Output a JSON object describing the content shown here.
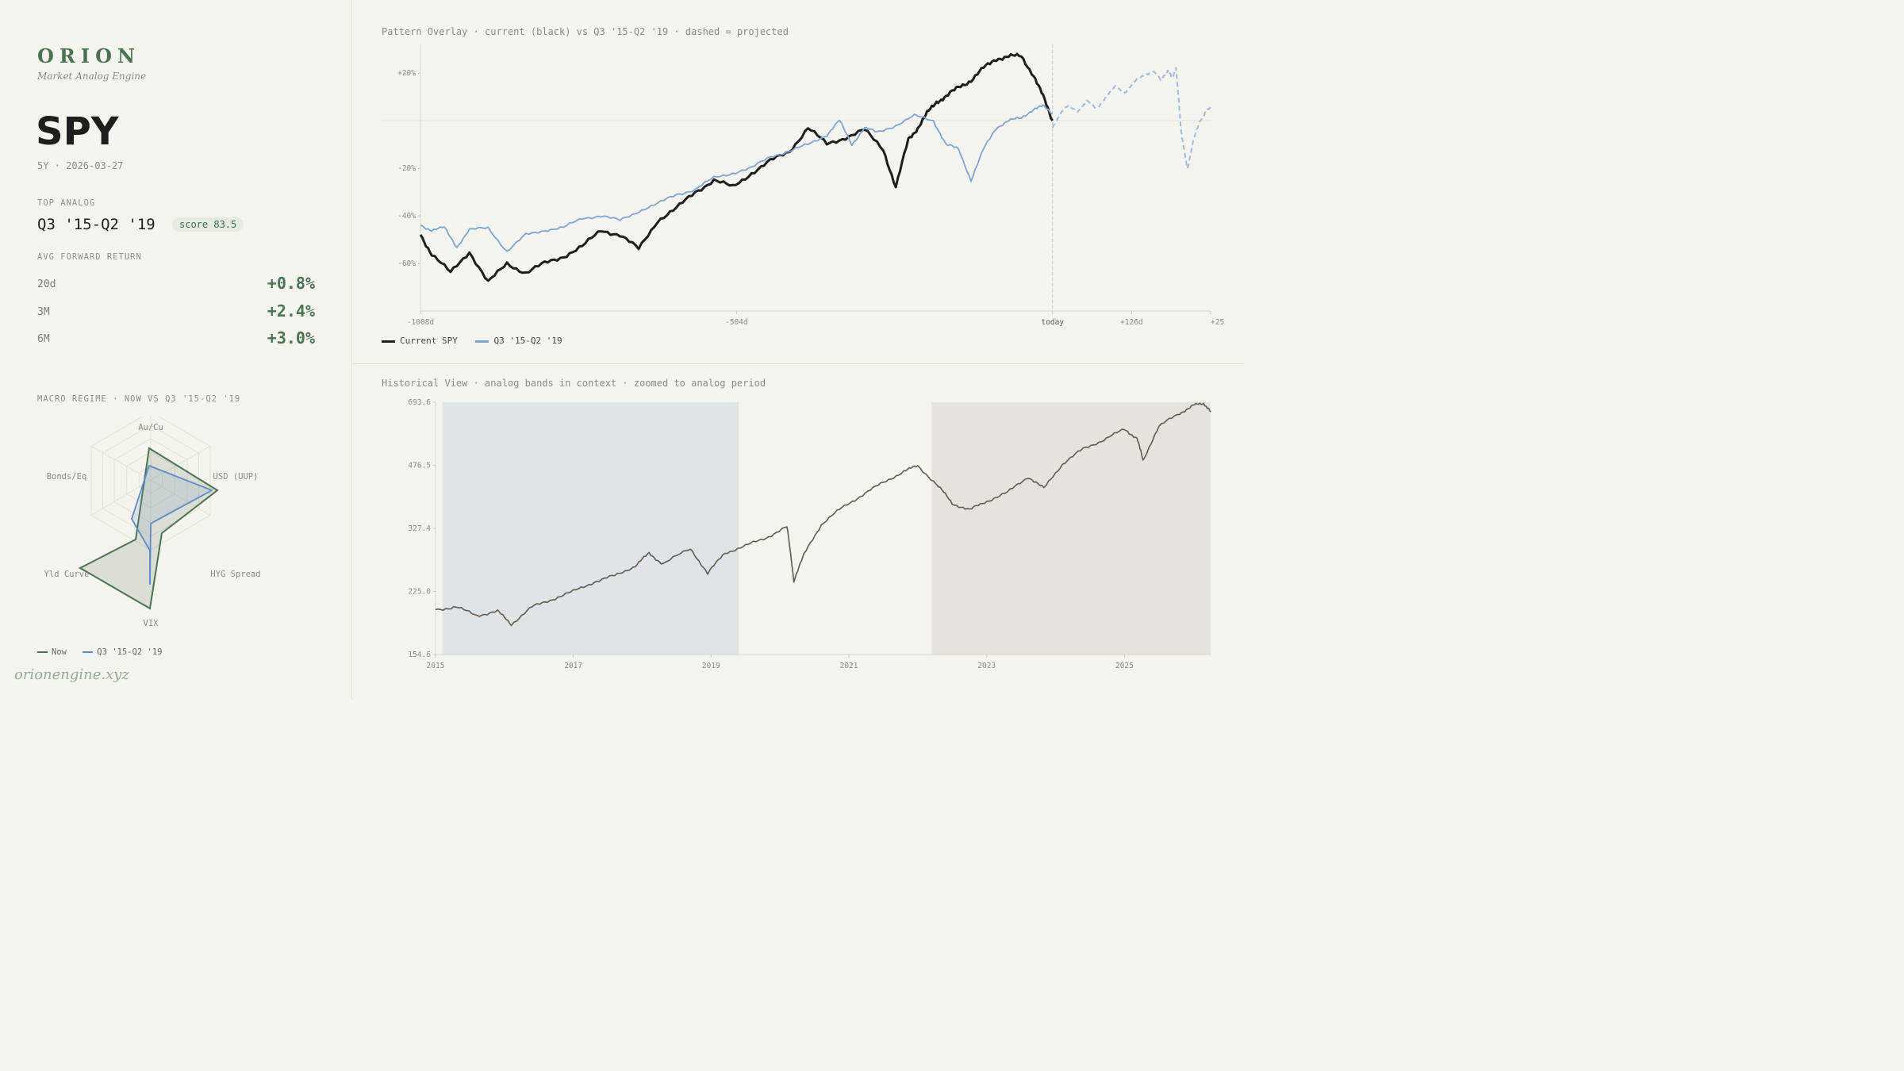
{
  "brand": {
    "name": "ORION",
    "subtitle": "Market Analog Engine",
    "footer": "orionengine.xyz"
  },
  "ticker": {
    "symbol": "SPY",
    "meta": "5Y · 2026-03-27"
  },
  "analog": {
    "label": "TOP ANALOG",
    "name": "Q3 '15-Q2 '19",
    "score": "score 83.5"
  },
  "forward": {
    "label": "AVG FORWARD RETURN",
    "rows": [
      {
        "horizon": "20d",
        "value": "+0.8%"
      },
      {
        "horizon": "3M",
        "value": "+2.4%"
      },
      {
        "horizon": "6M",
        "value": "+3.0%"
      }
    ]
  },
  "radar": {
    "label": "MACRO REGIME · NOW VS Q3 '15-Q2 '19",
    "axes": [
      "Au/Cu",
      "USD (UUP)",
      "HYG Spread",
      "VIX",
      "Yld Curve",
      "Bonds/Eq"
    ],
    "legend": {
      "now": "Now",
      "analog": "Q3 '15-Q2 '19"
    }
  },
  "overlay": {
    "title": "Pattern Overlay · current (black) vs Q3 '15-Q2 '19 · dashed = projected",
    "legend": {
      "current": "Current SPY",
      "analog": "Q3 '15-Q2 '19"
    }
  },
  "historical": {
    "title": "Historical View · analog bands in context · zoomed to analog period"
  },
  "chart_data": [
    {
      "type": "line",
      "title": "Pattern Overlay · current (black) vs Q3 '15-Q2 '19 · dashed = projected",
      "x_ticks": [
        "-1008d",
        "-504d",
        "today",
        "+126d",
        "+25"
      ],
      "y_ticks": [
        "+20%",
        "-20%",
        "-40%",
        "-60%"
      ],
      "ylim": [
        -80,
        30
      ],
      "xlim": [
        -1008,
        252
      ],
      "series": [
        {
          "name": "Current SPY",
          "color": "#1e1e1e",
          "x": [
            -1008,
            -990,
            -960,
            -930,
            -900,
            -870,
            -840,
            -810,
            -780,
            -750,
            -720,
            -690,
            -660,
            -630,
            -600,
            -570,
            -540,
            -510,
            -480,
            -450,
            -420,
            -390,
            -360,
            -330,
            -300,
            -270,
            -250,
            -230,
            -215,
            -200,
            -185,
            -170,
            -150,
            -130,
            -110,
            -90,
            -70,
            -50,
            -30,
            -15,
            0
          ],
          "y": [
            -48,
            -56,
            -64,
            -55,
            -68,
            -60,
            -64,
            -60,
            -57,
            -53,
            -46,
            -48,
            -54,
            -42,
            -37,
            -30,
            -25,
            -28,
            -22,
            -17,
            -13,
            -3,
            -10,
            -7,
            -4,
            -12,
            -28,
            -8,
            -3,
            3,
            8,
            10,
            14,
            17,
            22,
            26,
            27,
            27,
            19,
            10,
            0
          ]
        },
        {
          "name": "Q3 '15-Q2 '19",
          "color": "#7fa4d0",
          "x": [
            -1008,
            -990,
            -970,
            -950,
            -930,
            -900,
            -870,
            -840,
            -810,
            -780,
            -750,
            -720,
            -690,
            -660,
            -630,
            -600,
            -570,
            -540,
            -510,
            -480,
            -450,
            -420,
            -390,
            -360,
            -340,
            -320,
            -300,
            -280,
            -250,
            -220,
            -190,
            -170,
            -150,
            -130,
            -110,
            -90,
            -70,
            -50,
            -30,
            -15,
            0
          ],
          "y": [
            -44,
            -46,
            -45,
            -53,
            -46,
            -45,
            -55,
            -48,
            -46,
            -45,
            -41,
            -40,
            -42,
            -38,
            -35,
            -31,
            -29,
            -24,
            -22,
            -20,
            -15,
            -13,
            -10,
            -6,
            0,
            -10,
            -3,
            -5,
            -2,
            2,
            0,
            -10,
            -12,
            -25,
            -12,
            -3,
            0,
            1,
            5,
            6,
            3
          ]
        },
        {
          "name": "projected",
          "color": "#9fbadf",
          "dashed": true,
          "x": [
            0,
            12,
            25,
            40,
            55,
            70,
            85,
            100,
            115,
            130,
            145,
            160,
            172,
            180,
            185,
            190,
            197,
            205,
            215,
            225,
            235,
            245,
            252
          ],
          "y": [
            -3,
            3,
            6,
            4,
            8,
            5,
            10,
            14,
            12,
            16,
            19,
            21,
            17,
            20,
            21,
            18,
            22,
            -5,
            -20,
            -8,
            0,
            4,
            5
          ]
        }
      ]
    },
    {
      "type": "line",
      "title": "Historical View · analog bands in context · zoomed to analog period",
      "x_ticks": [
        "2015",
        "2017",
        "2019",
        "2021",
        "2023",
        "2025"
      ],
      "y_ticks": [
        "693.6",
        "476.5",
        "327.4",
        "225.0",
        "154.6"
      ],
      "ylim": [
        154.6,
        693.6
      ],
      "y_scale": "log",
      "xlim": [
        2015.0,
        2026.25
      ],
      "bands": [
        {
          "x0": 2015.1,
          "x1": 2019.4
        },
        {
          "x0": 2022.2,
          "x1": 2026.25
        }
      ],
      "series": [
        {
          "name": "",
          "color": "#5f5a52",
          "x": [
            2015.0,
            2015.3,
            2015.6,
            2015.9,
            2016.1,
            2016.4,
            2016.7,
            2017.0,
            2017.3,
            2017.6,
            2017.9,
            2018.1,
            2018.3,
            2018.7,
            2018.95,
            2019.2,
            2019.5,
            2019.8,
            2020.1,
            2020.2,
            2020.35,
            2020.6,
            2020.9,
            2021.2,
            2021.5,
            2021.8,
            2022.0,
            2022.3,
            2022.5,
            2022.75,
            2023.0,
            2023.3,
            2023.6,
            2023.83,
            2024.1,
            2024.4,
            2024.7,
            2025.0,
            2025.18,
            2025.27,
            2025.5,
            2025.8,
            2026.0,
            2026.15,
            2026.25
          ],
          "y": [
            202,
            205,
            195,
            200,
            185,
            205,
            215,
            225,
            238,
            247,
            262,
            282,
            265,
            290,
            250,
            283,
            295,
            310,
            330,
            240,
            280,
            335,
            370,
            400,
            430,
            460,
            475,
            420,
            380,
            365,
            385,
            405,
            445,
            415,
            480,
            525,
            555,
            590,
            560,
            490,
            600,
            650,
            680,
            690,
            655
          ]
        }
      ]
    }
  ]
}
